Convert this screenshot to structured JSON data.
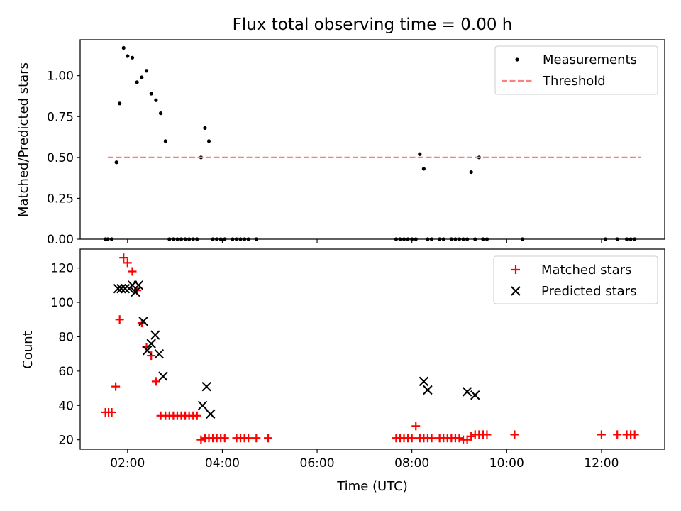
{
  "figure": {
    "title": "Flux total observing time = 0.00 h"
  },
  "colors": {
    "measurement": "#000000",
    "threshold": "#ff7f7f",
    "matched": "#ff0000",
    "predicted": "#000000"
  },
  "chart_data": [
    {
      "type": "scatter",
      "title": "Flux total observing time = 0.00 h",
      "xlabel": "",
      "ylabel": "Matched/Predicted stars",
      "xlim": [
        "01:00",
        "13:20"
      ],
      "ylim": [
        0,
        1.22
      ],
      "xticks": [
        "02:00",
        "04:00",
        "06:00",
        "08:00",
        "10:00",
        "12:00"
      ],
      "yticks": [
        "0.00",
        "0.25",
        "0.50",
        "0.75",
        "1.00"
      ],
      "legend_position": "top-right",
      "grid": false,
      "series": [
        {
          "name": "Measurements",
          "marker": "dot",
          "color": "#000000",
          "x": [
            "01:32",
            "01:35",
            "01:40",
            "01:46",
            "01:50",
            "01:55",
            "02:00",
            "02:06",
            "02:12",
            "02:18",
            "02:24",
            "02:30",
            "02:36",
            "02:42",
            "02:48",
            "02:53",
            "02:58",
            "03:03",
            "03:08",
            "03:13",
            "03:18",
            "03:23",
            "03:28",
            "03:33",
            "03:38",
            "03:43",
            "03:48",
            "03:53",
            "03:58",
            "04:03",
            "04:13",
            "04:18",
            "04:23",
            "04:28",
            "04:33",
            "04:43",
            "07:40",
            "07:45",
            "07:50",
            "07:55",
            "08:00",
            "08:05",
            "08:10",
            "08:15",
            "08:20",
            "08:25",
            "08:35",
            "08:40",
            "08:50",
            "08:55",
            "09:00",
            "09:05",
            "09:10",
            "09:15",
            "09:20",
            "09:25",
            "09:30",
            "09:35",
            "10:20",
            "12:05",
            "12:20",
            "12:32",
            "12:37",
            "12:42"
          ],
          "y": [
            0,
            0,
            0,
            0.47,
            0.83,
            1.17,
            1.12,
            1.11,
            0.96,
            0.99,
            1.03,
            0.89,
            0.85,
            0.77,
            0.6,
            0,
            0,
            0,
            0,
            0,
            0,
            0,
            0,
            0.5,
            0.68,
            0.6,
            0,
            0,
            0,
            0,
            0,
            0,
            0,
            0,
            0,
            0,
            0,
            0,
            0,
            0,
            0,
            0,
            0.52,
            0.43,
            0,
            0,
            0,
            0,
            0,
            0,
            0,
            0,
            0,
            0.41,
            0,
            0.5,
            0,
            0,
            0,
            0,
            0,
            0,
            0,
            0
          ]
        },
        {
          "name": "Threshold",
          "style": "dashed-line",
          "color": "#ff7f7f",
          "x": [
            "01:35",
            "12:50"
          ],
          "y": [
            0.5,
            0.5
          ]
        }
      ]
    },
    {
      "type": "scatter",
      "title": "",
      "xlabel": "Time (UTC)",
      "ylabel": "Count",
      "xlim": [
        "01:00",
        "13:20"
      ],
      "ylim": [
        14.5,
        131
      ],
      "xticks": [
        "02:00",
        "04:00",
        "06:00",
        "08:00",
        "10:00",
        "12:00"
      ],
      "yticks": [
        "20",
        "40",
        "60",
        "80",
        "100",
        "120"
      ],
      "legend_position": "top-right",
      "grid": false,
      "series": [
        {
          "name": "Matched stars",
          "marker": "plus",
          "color": "#ff0000",
          "x": [
            "01:32",
            "01:36",
            "01:40",
            "01:45",
            "01:50",
            "01:55",
            "02:00",
            "02:06",
            "02:12",
            "02:18",
            "02:24",
            "02:30",
            "02:36",
            "02:42",
            "02:48",
            "02:53",
            "02:58",
            "03:03",
            "03:08",
            "03:13",
            "03:18",
            "03:23",
            "03:28",
            "03:33",
            "03:38",
            "03:43",
            "03:48",
            "03:53",
            "03:58",
            "04:03",
            "04:18",
            "04:23",
            "04:28",
            "04:33",
            "04:43",
            "04:58",
            "07:40",
            "07:45",
            "07:50",
            "07:55",
            "08:00",
            "08:05",
            "08:10",
            "08:15",
            "08:20",
            "08:25",
            "08:35",
            "08:40",
            "08:45",
            "08:50",
            "08:55",
            "09:00",
            "09:05",
            "09:10",
            "09:15",
            "09:20",
            "09:25",
            "09:30",
            "09:35",
            "10:10",
            "12:00",
            "12:20",
            "12:32",
            "12:37",
            "12:42"
          ],
          "y": [
            36,
            36,
            36,
            51,
            90,
            126,
            123,
            118,
            107,
            88,
            74,
            69,
            54,
            34,
            34,
            34,
            34,
            34,
            34,
            34,
            34,
            34,
            34,
            20,
            21,
            21,
            21,
            21,
            21,
            21,
            21,
            21,
            21,
            21,
            21,
            21,
            21,
            21,
            21,
            21,
            21,
            28,
            21,
            21,
            21,
            21,
            21,
            21,
            21,
            21,
            21,
            21,
            20,
            20,
            22,
            23,
            23,
            23,
            23,
            23,
            23,
            23,
            23,
            23,
            23
          ]
        },
        {
          "name": "Predicted stars",
          "marker": "x",
          "color": "#000000",
          "x": [
            "01:48",
            "01:52",
            "01:57",
            "02:02",
            "02:06",
            "02:10",
            "02:14",
            "02:20",
            "02:25",
            "02:30",
            "02:35",
            "02:40",
            "02:45",
            "03:35",
            "03:40",
            "03:45",
            "08:15",
            "08:20",
            "09:10",
            "09:20"
          ],
          "y": [
            108,
            108,
            108,
            108,
            110,
            106,
            110,
            89,
            72,
            76,
            81,
            70,
            57,
            40,
            51,
            35,
            54,
            49,
            48,
            46
          ]
        }
      ]
    }
  ]
}
